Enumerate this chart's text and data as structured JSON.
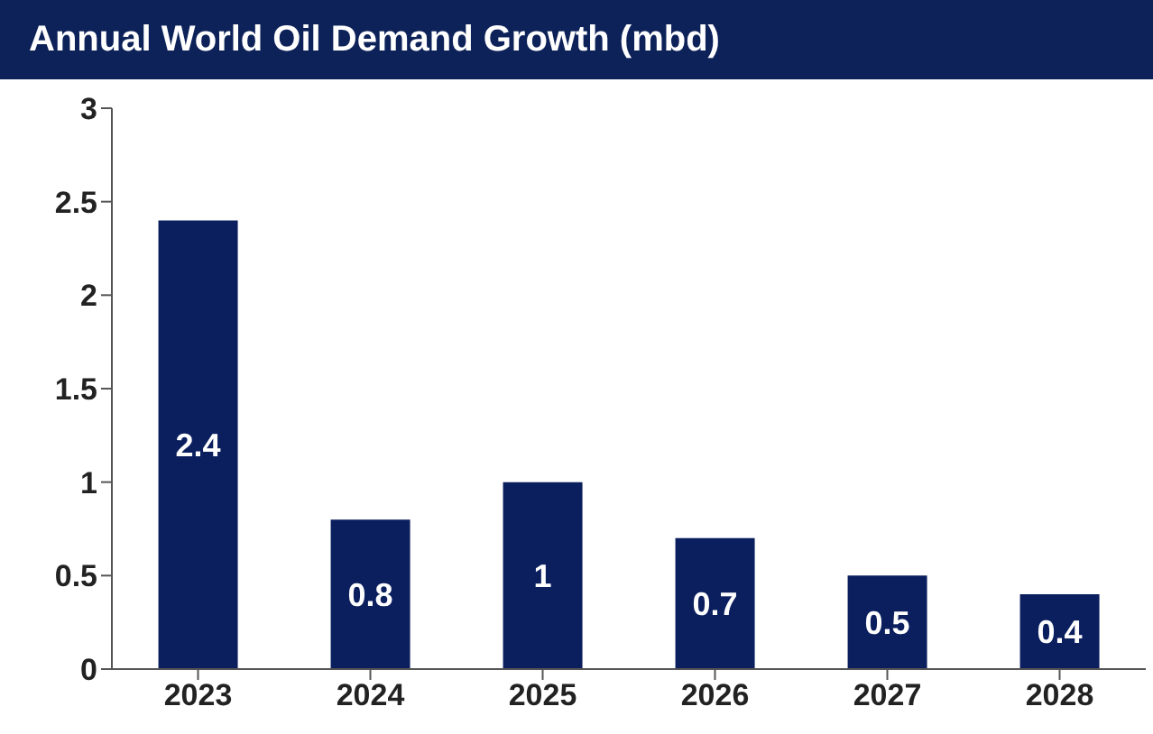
{
  "chart_data": {
    "type": "bar",
    "title": "Annual World Oil Demand Growth (mbd)",
    "categories": [
      "2023",
      "2024",
      "2025",
      "2026",
      "2027",
      "2028"
    ],
    "values": [
      2.4,
      0.8,
      1,
      0.7,
      0.5,
      0.4
    ],
    "color": "#0b1f5e",
    "ylim": [
      0,
      3
    ],
    "yticks": [
      0,
      0.5,
      1,
      1.5,
      2,
      2.5,
      3
    ],
    "grid": false,
    "data_labels": true
  }
}
